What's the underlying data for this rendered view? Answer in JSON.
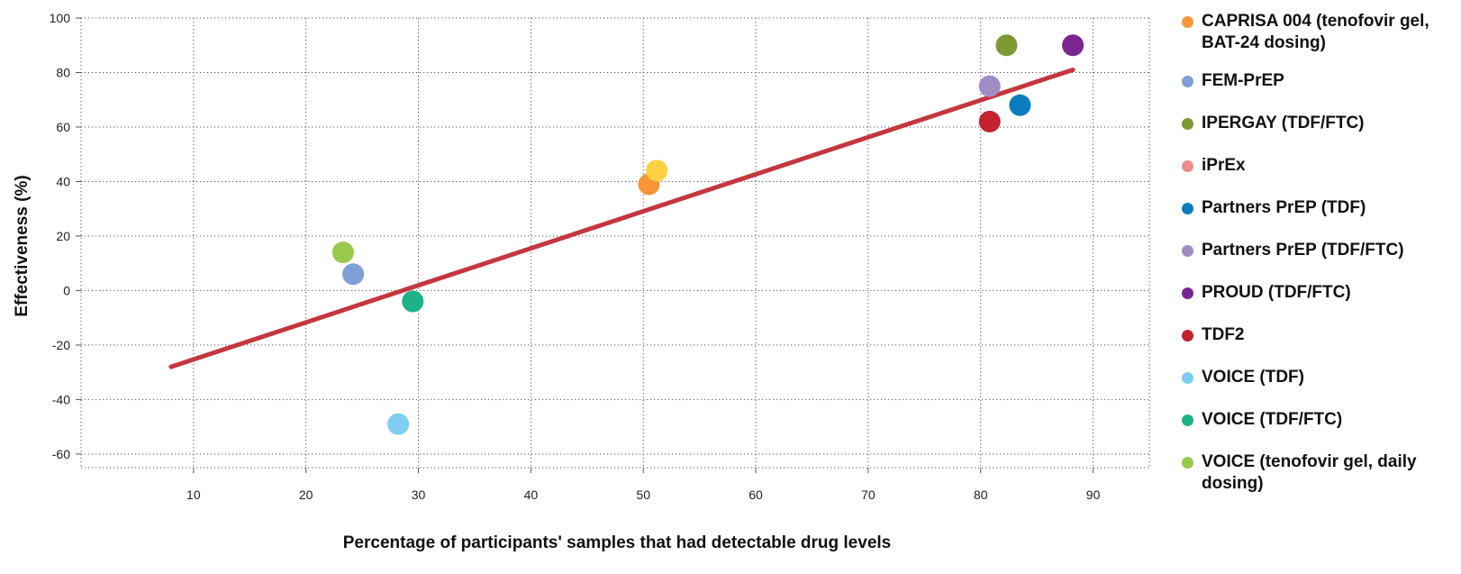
{
  "chart_data": {
    "type": "scatter",
    "xlabel": "Percentage of participants' samples that had detectable drug levels",
    "ylabel": "Effectiveness (%)",
    "xlim": [
      0,
      95
    ],
    "ylim": [
      -65,
      100
    ],
    "x_ticks": [
      10,
      20,
      30,
      40,
      50,
      60,
      70,
      80,
      90
    ],
    "y_ticks": [
      100,
      80,
      60,
      40,
      20,
      0,
      -20,
      -40,
      -60
    ],
    "grid": true,
    "legend_position": "right",
    "series": [
      {
        "name": "CAPRISA 004 (tenofovir gel, BAT-24 dosing)",
        "color": "#f7953b",
        "x": [
          50.5
        ],
        "y": [
          39
        ]
      },
      {
        "name": "FEM-PrEP",
        "color": "#7f9fd6",
        "x": [
          24.2
        ],
        "y": [
          6
        ]
      },
      {
        "name": "IPERGAY (TDF/FTC)",
        "color": "#7d9a35",
        "x": [
          82.3
        ],
        "y": [
          90
        ]
      },
      {
        "name": "iPrEx",
        "color": "#f08b8b",
        "x": [],
        "y": []
      },
      {
        "name": "Partners PrEP (TDF)",
        "color": "#0b7dbc",
        "x": [
          83.5
        ],
        "y": [
          68
        ]
      },
      {
        "name": "Partners PrEP (TDF/FTC)",
        "color": "#a08dc8",
        "x": [
          80.8
        ],
        "y": [
          75
        ]
      },
      {
        "name": "PROUD (TDF/FTC)",
        "color": "#7b2593",
        "x": [
          88.2
        ],
        "y": [
          90
        ]
      },
      {
        "name": "TDF2",
        "color": "#c4222f",
        "x": [
          80.8
        ],
        "y": [
          62
        ]
      },
      {
        "name": "VOICE (TDF)",
        "color": "#7fcdf4",
        "x": [
          28.2
        ],
        "y": [
          -49
        ]
      },
      {
        "name": "VOICE (TDF/FTC)",
        "color": "#1db288",
        "x": [
          29.5
        ],
        "y": [
          -4
        ]
      },
      {
        "name": "VOICE (tenofovir gel, daily dosing)",
        "color": "#98c94a",
        "x": [
          23.3
        ],
        "y": [
          14
        ]
      },
      {
        "name": "iPrEx (unlabeled point)",
        "color": "#fdd140",
        "x": [
          51.2
        ],
        "y": [
          44
        ]
      }
    ],
    "trendline": {
      "color": "#c4373f",
      "x": [
        8,
        88.2
      ],
      "y": [
        -28,
        81
      ]
    }
  }
}
